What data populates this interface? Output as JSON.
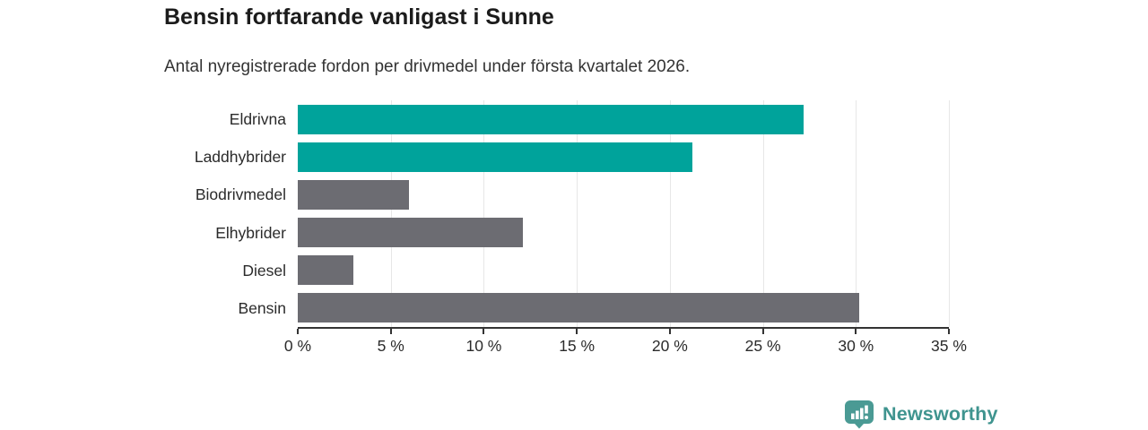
{
  "header": {
    "title": "Bensin fortfarande vanligast i Sunne",
    "subtitle": "Antal nyregistrerade fordon per drivmedel under första kvartalet 2026."
  },
  "chart_data": {
    "type": "bar",
    "orientation": "horizontal",
    "title": "Bensin fortfarande vanligast i Sunne",
    "subtitle": "Antal nyregistrerade fordon per drivmedel under första kvartalet 2026.",
    "categories": [
      "Eldrivna",
      "Laddhybrider",
      "Biodrivmedel",
      "Elhybrider",
      "Diesel",
      "Bensin"
    ],
    "values": [
      27.2,
      21.2,
      6.0,
      12.1,
      3.0,
      30.2
    ],
    "unit": "%",
    "bar_colors": [
      "#00a39b",
      "#00a39b",
      "#6c6c72",
      "#6c6c72",
      "#6c6c72",
      "#6c6c72"
    ],
    "xlabel": "",
    "ylabel": "",
    "xlim": [
      0,
      35
    ],
    "x_ticks": [
      0,
      5,
      10,
      15,
      20,
      25,
      30,
      35
    ],
    "x_tick_labels": [
      "0 %",
      "5 %",
      "10 %",
      "15 %",
      "20 %",
      "25 %",
      "30 %",
      "35 %"
    ],
    "grid": "vertical-on",
    "legend": "none"
  },
  "footer": {
    "brand": "Newsworthy",
    "logo_icon": "newsworthy-bar-chart-bubble-icon"
  },
  "colors": {
    "accent_teal": "#00a39b",
    "bar_gray": "#6c6c72",
    "axis_line": "#333333",
    "gridline": "#e7e7e7",
    "title_text": "#1b1b1b",
    "brand_teal": "#3f948f"
  }
}
